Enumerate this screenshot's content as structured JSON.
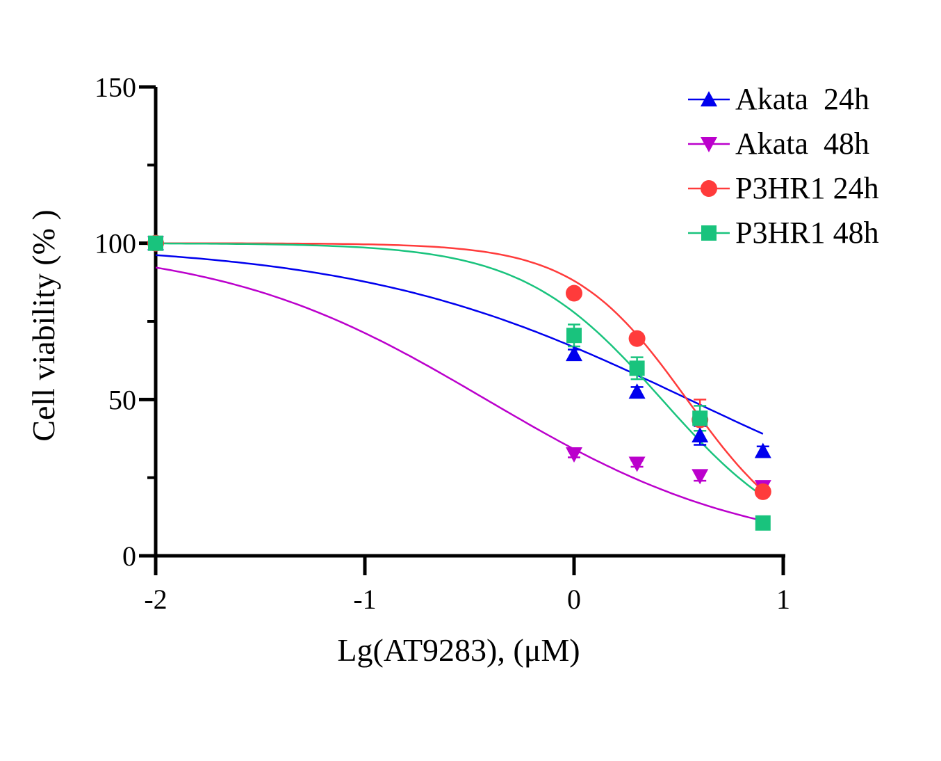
{
  "chart_data": {
    "type": "scatter",
    "title": "",
    "xlabel": "Lg(AT9283), (μM)",
    "ylabel": "Cell viability (% )",
    "xlim": [
      -2,
      1
    ],
    "ylim": [
      0,
      150
    ],
    "xticks": [
      "-2",
      "-1",
      "0",
      "1"
    ],
    "yticks": [
      "0",
      "50",
      "100",
      "150"
    ],
    "grid": false,
    "legend_position": "top-right",
    "series": [
      {
        "name": "Akata  24h",
        "color": "#0000ee",
        "marker": "triangle-up",
        "x": [
          -2,
          0,
          0.301,
          0.602,
          0.903
        ],
        "y": [
          100,
          64.5,
          52.5,
          38.5,
          33.5
        ],
        "error": [
          0,
          1.5,
          1.5,
          3.0,
          1.5
        ],
        "fit": {
          "top": 100,
          "bottom": 0,
          "logIC50": 0.55,
          "hill": 0.55
        }
      },
      {
        "name": "Akata  48h",
        "color": "#bb00cc",
        "marker": "triangle-down",
        "x": [
          -2,
          0,
          0.301,
          0.602,
          0.903
        ],
        "y": [
          100,
          32.5,
          29.5,
          25.5,
          22.0
        ],
        "error": [
          0,
          1.0,
          1.0,
          1.5,
          1.5
        ],
        "fit": {
          "top": 100,
          "bottom": 0,
          "logIC50": -0.42,
          "hill": 0.68
        }
      },
      {
        "name": "P3HR1 24h",
        "color": "#ff3b3b",
        "marker": "circle",
        "x": [
          -2,
          0,
          0.301,
          0.602,
          0.903
        ],
        "y": [
          100,
          84,
          69.5,
          43.5,
          20.5
        ],
        "error": [
          0,
          1.0,
          1.5,
          6.5,
          1.5
        ],
        "fit": {
          "top": 100,
          "bottom": 0,
          "logIC50": 0.54,
          "hill": 1.6
        }
      },
      {
        "name": "P3HR1 48h",
        "color": "#19c37d",
        "marker": "square",
        "x": [
          -2,
          0,
          0.301,
          0.602,
          0.903
        ],
        "y": [
          100,
          70.5,
          60,
          44,
          10.5
        ],
        "error": [
          0,
          3.5,
          3.5,
          4.0,
          1.5
        ],
        "fit": {
          "top": 100,
          "bottom": 0,
          "logIC50": 0.42,
          "hill": 1.3
        }
      }
    ]
  }
}
